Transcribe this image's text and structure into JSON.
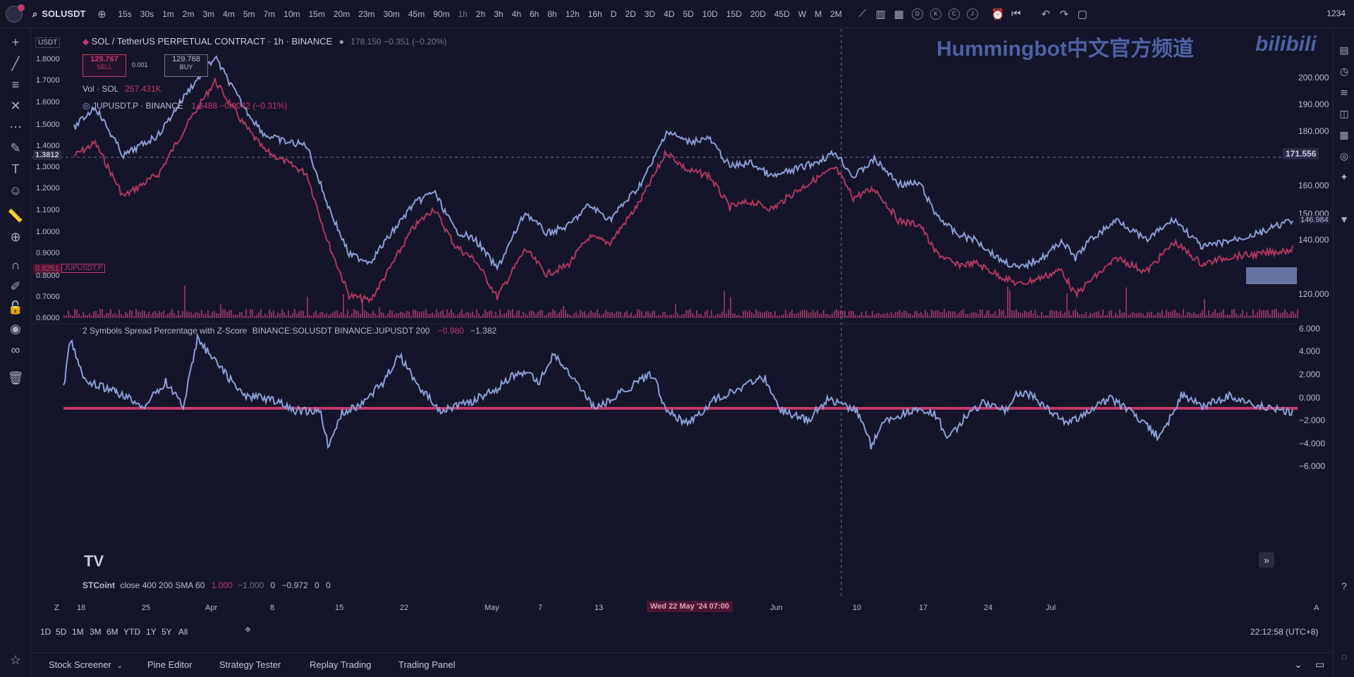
{
  "topbar": {
    "symbol": "SOLUSDT",
    "timeframes": [
      "15s",
      "30s",
      "1m",
      "2m",
      "3m",
      "4m",
      "5m",
      "7m",
      "10m",
      "15m",
      "20m",
      "23m",
      "30m",
      "45m",
      "90m",
      "1h",
      "2h",
      "3h",
      "4h",
      "6h",
      "8h",
      "12h",
      "16h",
      "D",
      "2D",
      "3D",
      "4D",
      "5D",
      "10D",
      "15D",
      "20D",
      "45D",
      "W",
      "M",
      "2M"
    ],
    "active_timeframe": "1h",
    "circle_letters": [
      "D",
      "K",
      "C",
      "J"
    ],
    "right_value": "1234"
  },
  "watermark": "Hummingbot中文官方频道",
  "watermark_logo": "bilibili",
  "legend": {
    "currency": "USDT",
    "title": "SOL / TetherUS PERPETUAL CONTRACT · 1h · BINANCE",
    "ohlc": "178.150  −0.351 (−0.20%)",
    "sell_price": "129.767",
    "sell_label": "SELL",
    "spread": "0.001",
    "buy_price": "129.768",
    "buy_label": "BUY",
    "volume_label": "Vol · SOL",
    "volume_value": "257.431K",
    "compare_symbol": "JUPUSDT.P · BINANCE",
    "compare_value": "1.3488  −0.0042 (−0.31%)"
  },
  "right_axis": [
    "200.000",
    "190.000",
    "180.000",
    "171.556",
    "160.000",
    "150.000",
    "146.984",
    "140.000",
    "120.000"
  ],
  "left_axis": [
    "1.8000",
    "1.7000",
    "1.6000",
    "1.5000",
    "1.4000",
    "1.3812",
    "1.3000",
    "1.2000",
    "1.1000",
    "1.0000",
    "0.9000",
    "0.8251",
    "0.8000",
    "0.7000",
    "0.6000"
  ],
  "left_compare_tag": "JUPUSDT.P",
  "indicator": {
    "title": "2 Symbols Spread Percentage with Z-Score",
    "params": "BINANCE:SOLUSDT BINANCE:JUPUSDT 200",
    "value1": "−0.980",
    "value2": "−1.382",
    "axis": [
      "6.000",
      "4.000",
      "2.000",
      "0.000",
      "−2.000",
      "−4.000",
      "−6.000"
    ]
  },
  "stcoint": {
    "name": "STCoint",
    "params": "close 400 200 SMA 60",
    "v1": "1.000",
    "v2": "−1.000",
    "v3": "0",
    "v4": "−0.972",
    "v5": "0",
    "v6": "0"
  },
  "time_axis": [
    "18",
    "25",
    "Apr",
    "8",
    "15",
    "22",
    "May",
    "7",
    "13",
    "Wed 22 May '24  07:00",
    "Jun",
    "10",
    "17",
    "24",
    "Jul"
  ],
  "time_left_char": "Z",
  "time_right_char": "A",
  "ranges": [
    "1D",
    "5D",
    "1M",
    "3M",
    "6M",
    "YTD",
    "1Y",
    "5Y",
    "All"
  ],
  "clock": "22:12:58 (UTC+8)",
  "bottom_tabs": [
    "Stock Screener",
    "Pine Editor",
    "Strategy Tester",
    "Replay Trading",
    "Trading Panel"
  ],
  "colors": {
    "sol_line": "#8b9ed6",
    "jup_line": "#b0385e",
    "volume": "#9c3a63",
    "zscore_line": "#8ba0d8",
    "zero_line": "#c2386a",
    "background": "#14142a",
    "accent": "#c2386a"
  }
}
